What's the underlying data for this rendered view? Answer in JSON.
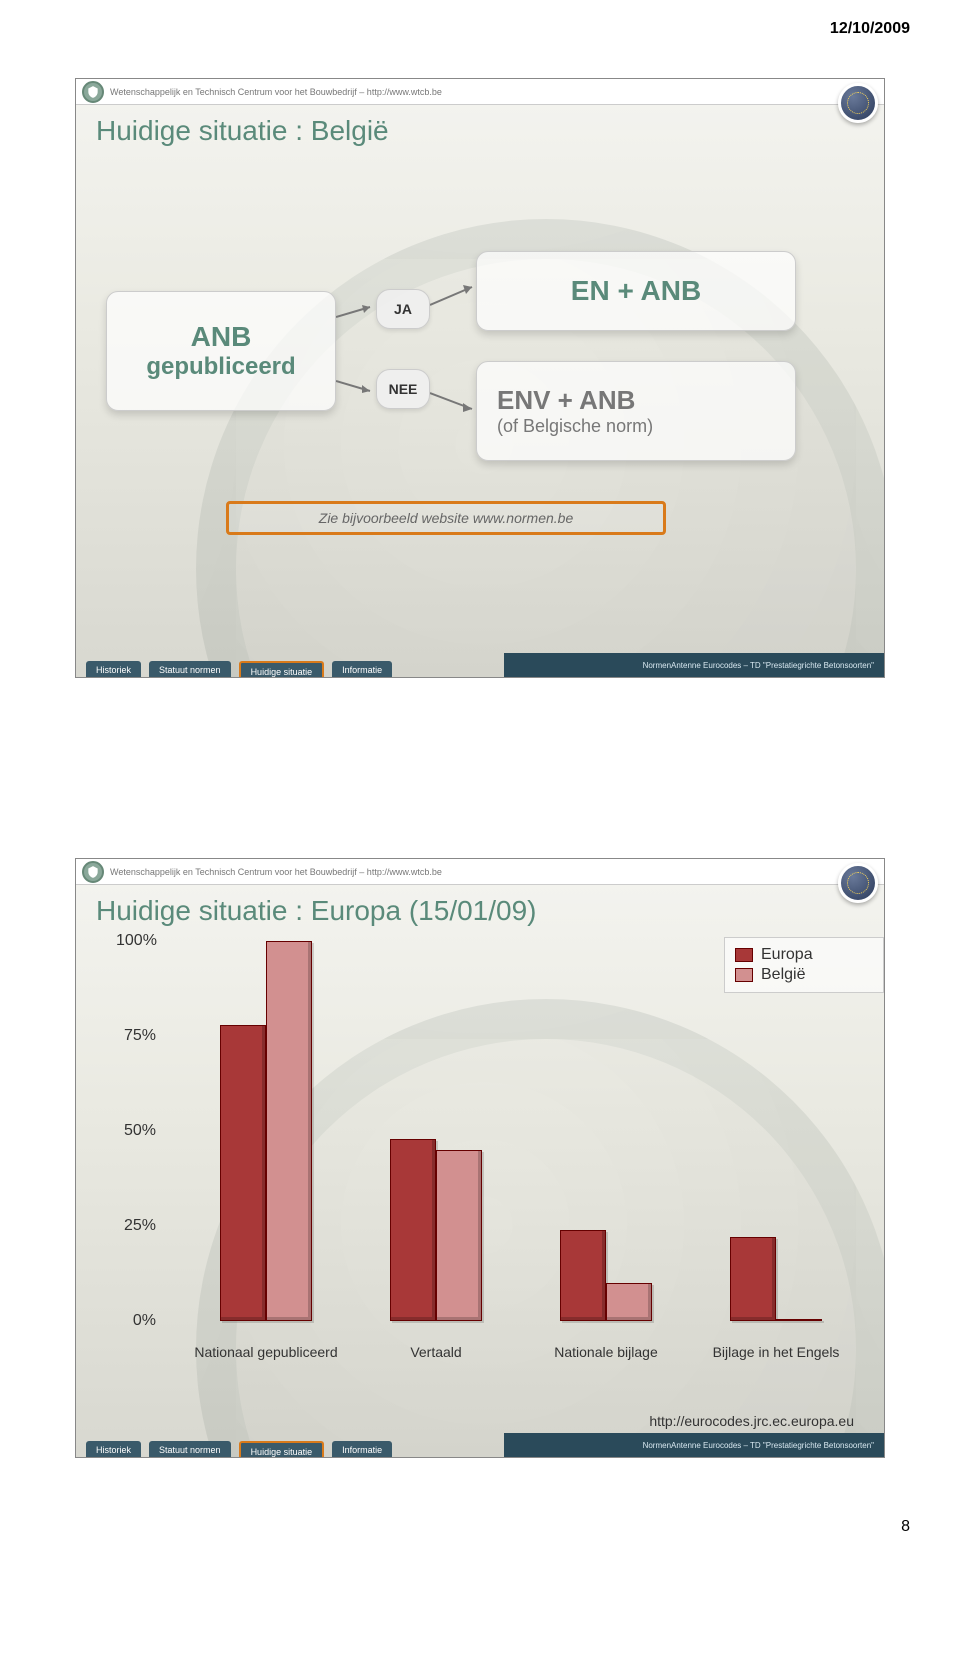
{
  "date": "12/10/2009",
  "header_text": "Wetenschappelijk en Technisch Centrum voor het Bouwbedrijf – http://www.wtcb.be",
  "footer_right": "NormenAntenne Eurocodes – TD \"Prestatiegrichte Betonsoorten\"",
  "tabs": [
    "Historiek",
    "Statuut normen",
    "Huidige situatie",
    "Informatie"
  ],
  "active_tab_index": 2,
  "page_number": "8",
  "slide1": {
    "title": "Huidige situatie : België",
    "box_left_l1": "ANB",
    "box_left_l2": "gepubliceerd",
    "pill_ja": "JA",
    "pill_nee": "NEE",
    "box_tr": "EN + ANB",
    "box_br_l1": "ENV + ANB",
    "box_br_l2": "(of Belgische norm)",
    "note": "Zie bijvoorbeeld website www.normen.be"
  },
  "slide2": {
    "title": "Huidige situatie : Europa (15/01/09)",
    "chart": {
      "type": "bar",
      "ylim": [
        0,
        100
      ],
      "ytick_labels": [
        "0%",
        "25%",
        "50%",
        "75%",
        "100%"
      ],
      "ytick_values": [
        0,
        25,
        50,
        75,
        100
      ],
      "series": [
        {
          "name": "Europa",
          "color": "#a83838"
        },
        {
          "name": "België",
          "color": "#d29090"
        }
      ],
      "categories": [
        {
          "label": "Nationaal gepubliceerd",
          "values": [
            78,
            100
          ]
        },
        {
          "label": "Vertaald",
          "values": [
            48,
            45
          ]
        },
        {
          "label": "Nationale bijlage",
          "values": [
            24,
            10
          ]
        },
        {
          "label": "Bijlage in het Engels",
          "values": [
            22,
            0
          ]
        }
      ],
      "bar_border_color": "#660000",
      "background": "transparent"
    },
    "url": "http://eurocodes.jrc.ec.europa.eu"
  },
  "colors": {
    "title_color": "#5a8a7a",
    "accent_orange": "#d97a1a",
    "tab_bg": "#3a5a6a"
  }
}
